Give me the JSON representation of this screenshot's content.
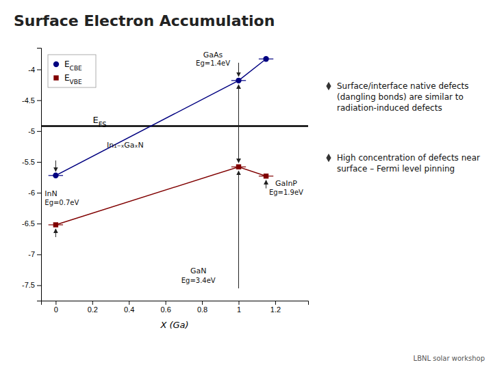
{
  "chart_data": {
    "type": "line",
    "title": "Surface Electron Accumulation",
    "x_label": "X (Ga)",
    "series": [
      {
        "name": "ECBE",
        "color": "#000080",
        "marker": "circle",
        "x": [
          0.0,
          1.0,
          1.15
        ],
        "values": [
          -5.72,
          -4.18,
          -3.83
        ],
        "x_errors": [
          0.04,
          0.04,
          0.04
        ]
      },
      {
        "name": "EVBE",
        "color": "#800000",
        "marker": "square",
        "x": [
          0.0,
          1.0,
          1.15
        ],
        "values": [
          -6.52,
          -5.58,
          -5.73
        ],
        "x_errors": [
          0.04,
          0.04,
          0.04
        ]
      }
    ],
    "reference_lines": [
      {
        "name": "EFS",
        "value": -4.92,
        "color": "#000000"
      }
    ],
    "xlim": [
      -0.08,
      1.38
    ],
    "ylim": [
      -7.75,
      -3.65
    ],
    "xticks": [
      0,
      0.2,
      0.4,
      0.6,
      0.8,
      1,
      1.2
    ],
    "yticks": [
      -7.5,
      -7,
      -6.5,
      -6,
      -5.5,
      -5,
      -4.5,
      -4
    ],
    "legend": "upper left",
    "annotations": [
      "InN",
      "Eg=0.7eV",
      "In₁₋ₓGaₓN",
      "GaAs",
      "Eg=1.4eV",
      "GaN",
      "Eg=3.4eV",
      "GaInP",
      "Eg=1.9eV",
      "Surface/interface native defects\n(dangling bonds) are similar to\nradiation-induced defects",
      "High concentration of defects near\nsurface – Fermi level pinning",
      "LBNL solar workshop"
    ]
  }
}
